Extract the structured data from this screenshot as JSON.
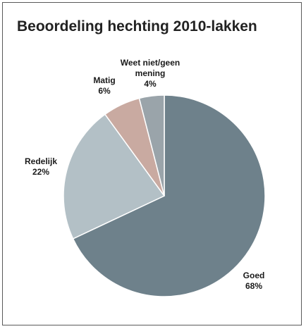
{
  "chart_data": {
    "type": "pie",
    "title": "Beoordeling hechting 2010-lakken",
    "slices": [
      {
        "label": [
          "Goed"
        ],
        "value_label": "68%",
        "value": 68,
        "color": "#6e818b"
      },
      {
        "label": [
          "Redelijk"
        ],
        "value_label": "22%",
        "value": 22,
        "color": "#b3c0c6"
      },
      {
        "label": [
          "Matig"
        ],
        "value_label": "6%",
        "value": 6,
        "color": "#c9aaa1"
      },
      {
        "label": [
          "Weet niet/geen",
          "mening"
        ],
        "value_label": "4%",
        "value": 4,
        "color": "#9aa4aa"
      }
    ],
    "start_angle_deg": 0,
    "direction": "clockwise"
  }
}
